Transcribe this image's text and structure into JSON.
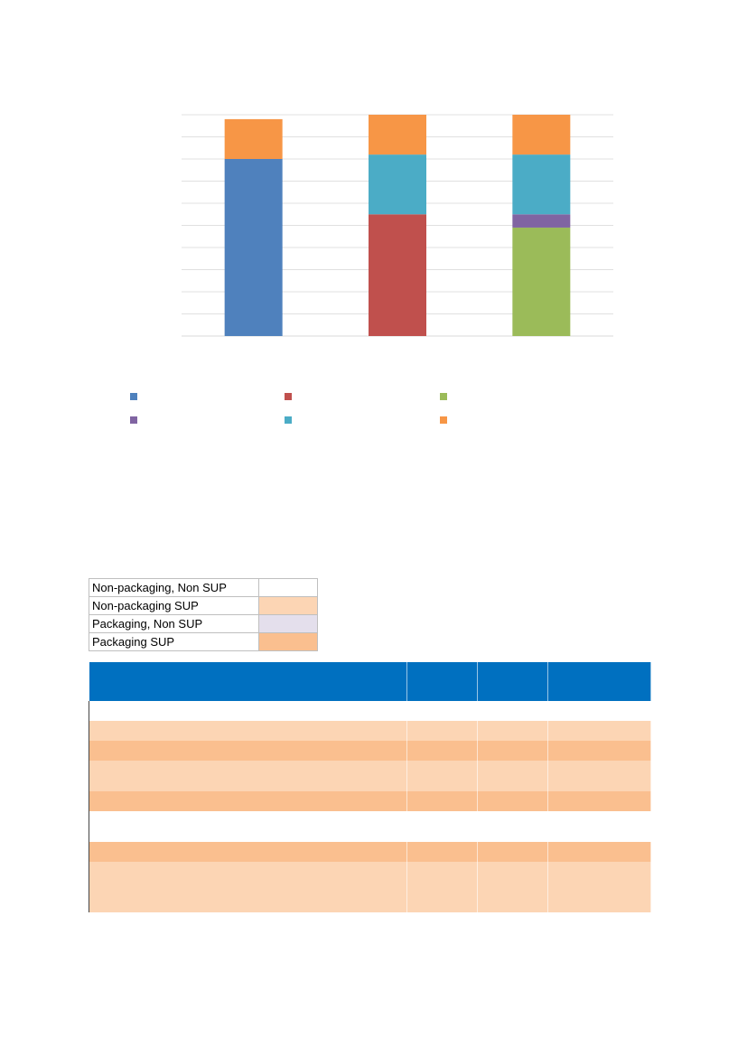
{
  "chart_data": {
    "type": "bar",
    "stacked": true,
    "categories": [
      "",
      "",
      ""
    ],
    "series": [
      {
        "color": "#4f81bd",
        "values": [
          80,
          0,
          0
        ]
      },
      {
        "color": "#c0504d",
        "values": [
          0,
          55,
          0
        ]
      },
      {
        "color": "#9bbb59",
        "values": [
          0,
          0,
          49
        ]
      },
      {
        "color": "#8064a2",
        "values": [
          0,
          0,
          6
        ]
      },
      {
        "color": "#4bacc6",
        "values": [
          0,
          27,
          27
        ]
      },
      {
        "color": "#f79646",
        "values": [
          18,
          18,
          18
        ]
      }
    ],
    "ylim": [
      0,
      100
    ],
    "gridlines": 10,
    "grid": true,
    "legend_position": "bottom"
  },
  "key_table": [
    {
      "label": "Non-packaging, Non SUP",
      "color": "#ffffff"
    },
    {
      "label": "Non-packaging SUP",
      "color": "#fcd5b4"
    },
    {
      "label": "Packaging, Non SUP",
      "color": "#e4dfec"
    },
    {
      "label": "Packaging SUP",
      "color": "#fabf8f"
    }
  ],
  "main_table": {
    "header_color": "#0070c0",
    "rows": [
      {
        "fill": "#ffffff",
        "tall": false
      },
      {
        "fill": "#fcd5b4",
        "tall": false
      },
      {
        "fill": "#fabf8f",
        "tall": false
      },
      {
        "fill": "#fcd5b4",
        "tall": true
      },
      {
        "fill": "#fabf8f",
        "tall": false
      },
      {
        "fill": "#ffffff",
        "tall": true
      },
      {
        "fill": "#fabf8f",
        "tall": false
      },
      {
        "fill": "#fcd5b4",
        "tall": false
      },
      {
        "fill": "#fcd5b4",
        "tall": true
      }
    ]
  }
}
